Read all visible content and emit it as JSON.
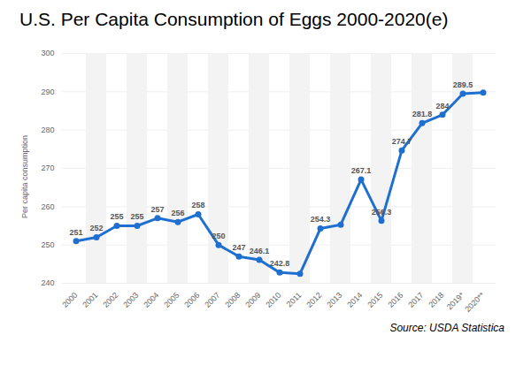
{
  "chart_data": {
    "type": "line",
    "title": "U.S. Per Capita Consumption of Eggs 2000-2020(e)",
    "y_label": "Per capita consumption",
    "caption": "Source: USDA Statistica",
    "categories": [
      "2000",
      "2001",
      "2002",
      "2003",
      "2004",
      "2005",
      "2006",
      "2007",
      "2008",
      "2009",
      "2010",
      "2011",
      "2012",
      "2013",
      "2014",
      "2015",
      "2016",
      "2017",
      "2018",
      "2019*",
      "2020**"
    ],
    "values": [
      251,
      252,
      255,
      255,
      257,
      256,
      258,
      250,
      247,
      246.1,
      242.8,
      242.5,
      254.3,
      255.3,
      267.1,
      256.3,
      274.7,
      281.8,
      284,
      289.5,
      289.8
    ],
    "value_labels": [
      "251",
      "252",
      "255",
      "255",
      "257",
      "256",
      "258",
      "250",
      "247",
      "246.1",
      "242.8",
      null,
      "254.3",
      null,
      "267.1",
      "256.3",
      "274.7",
      "281.8",
      "284",
      "289.5",
      null
    ],
    "data_labels": true,
    "color": "#1f6fd0",
    "marker": "circle",
    "ylim": [
      240,
      300
    ],
    "yticks": [
      240,
      250,
      260,
      270,
      280,
      290,
      300
    ],
    "grid": true
  }
}
